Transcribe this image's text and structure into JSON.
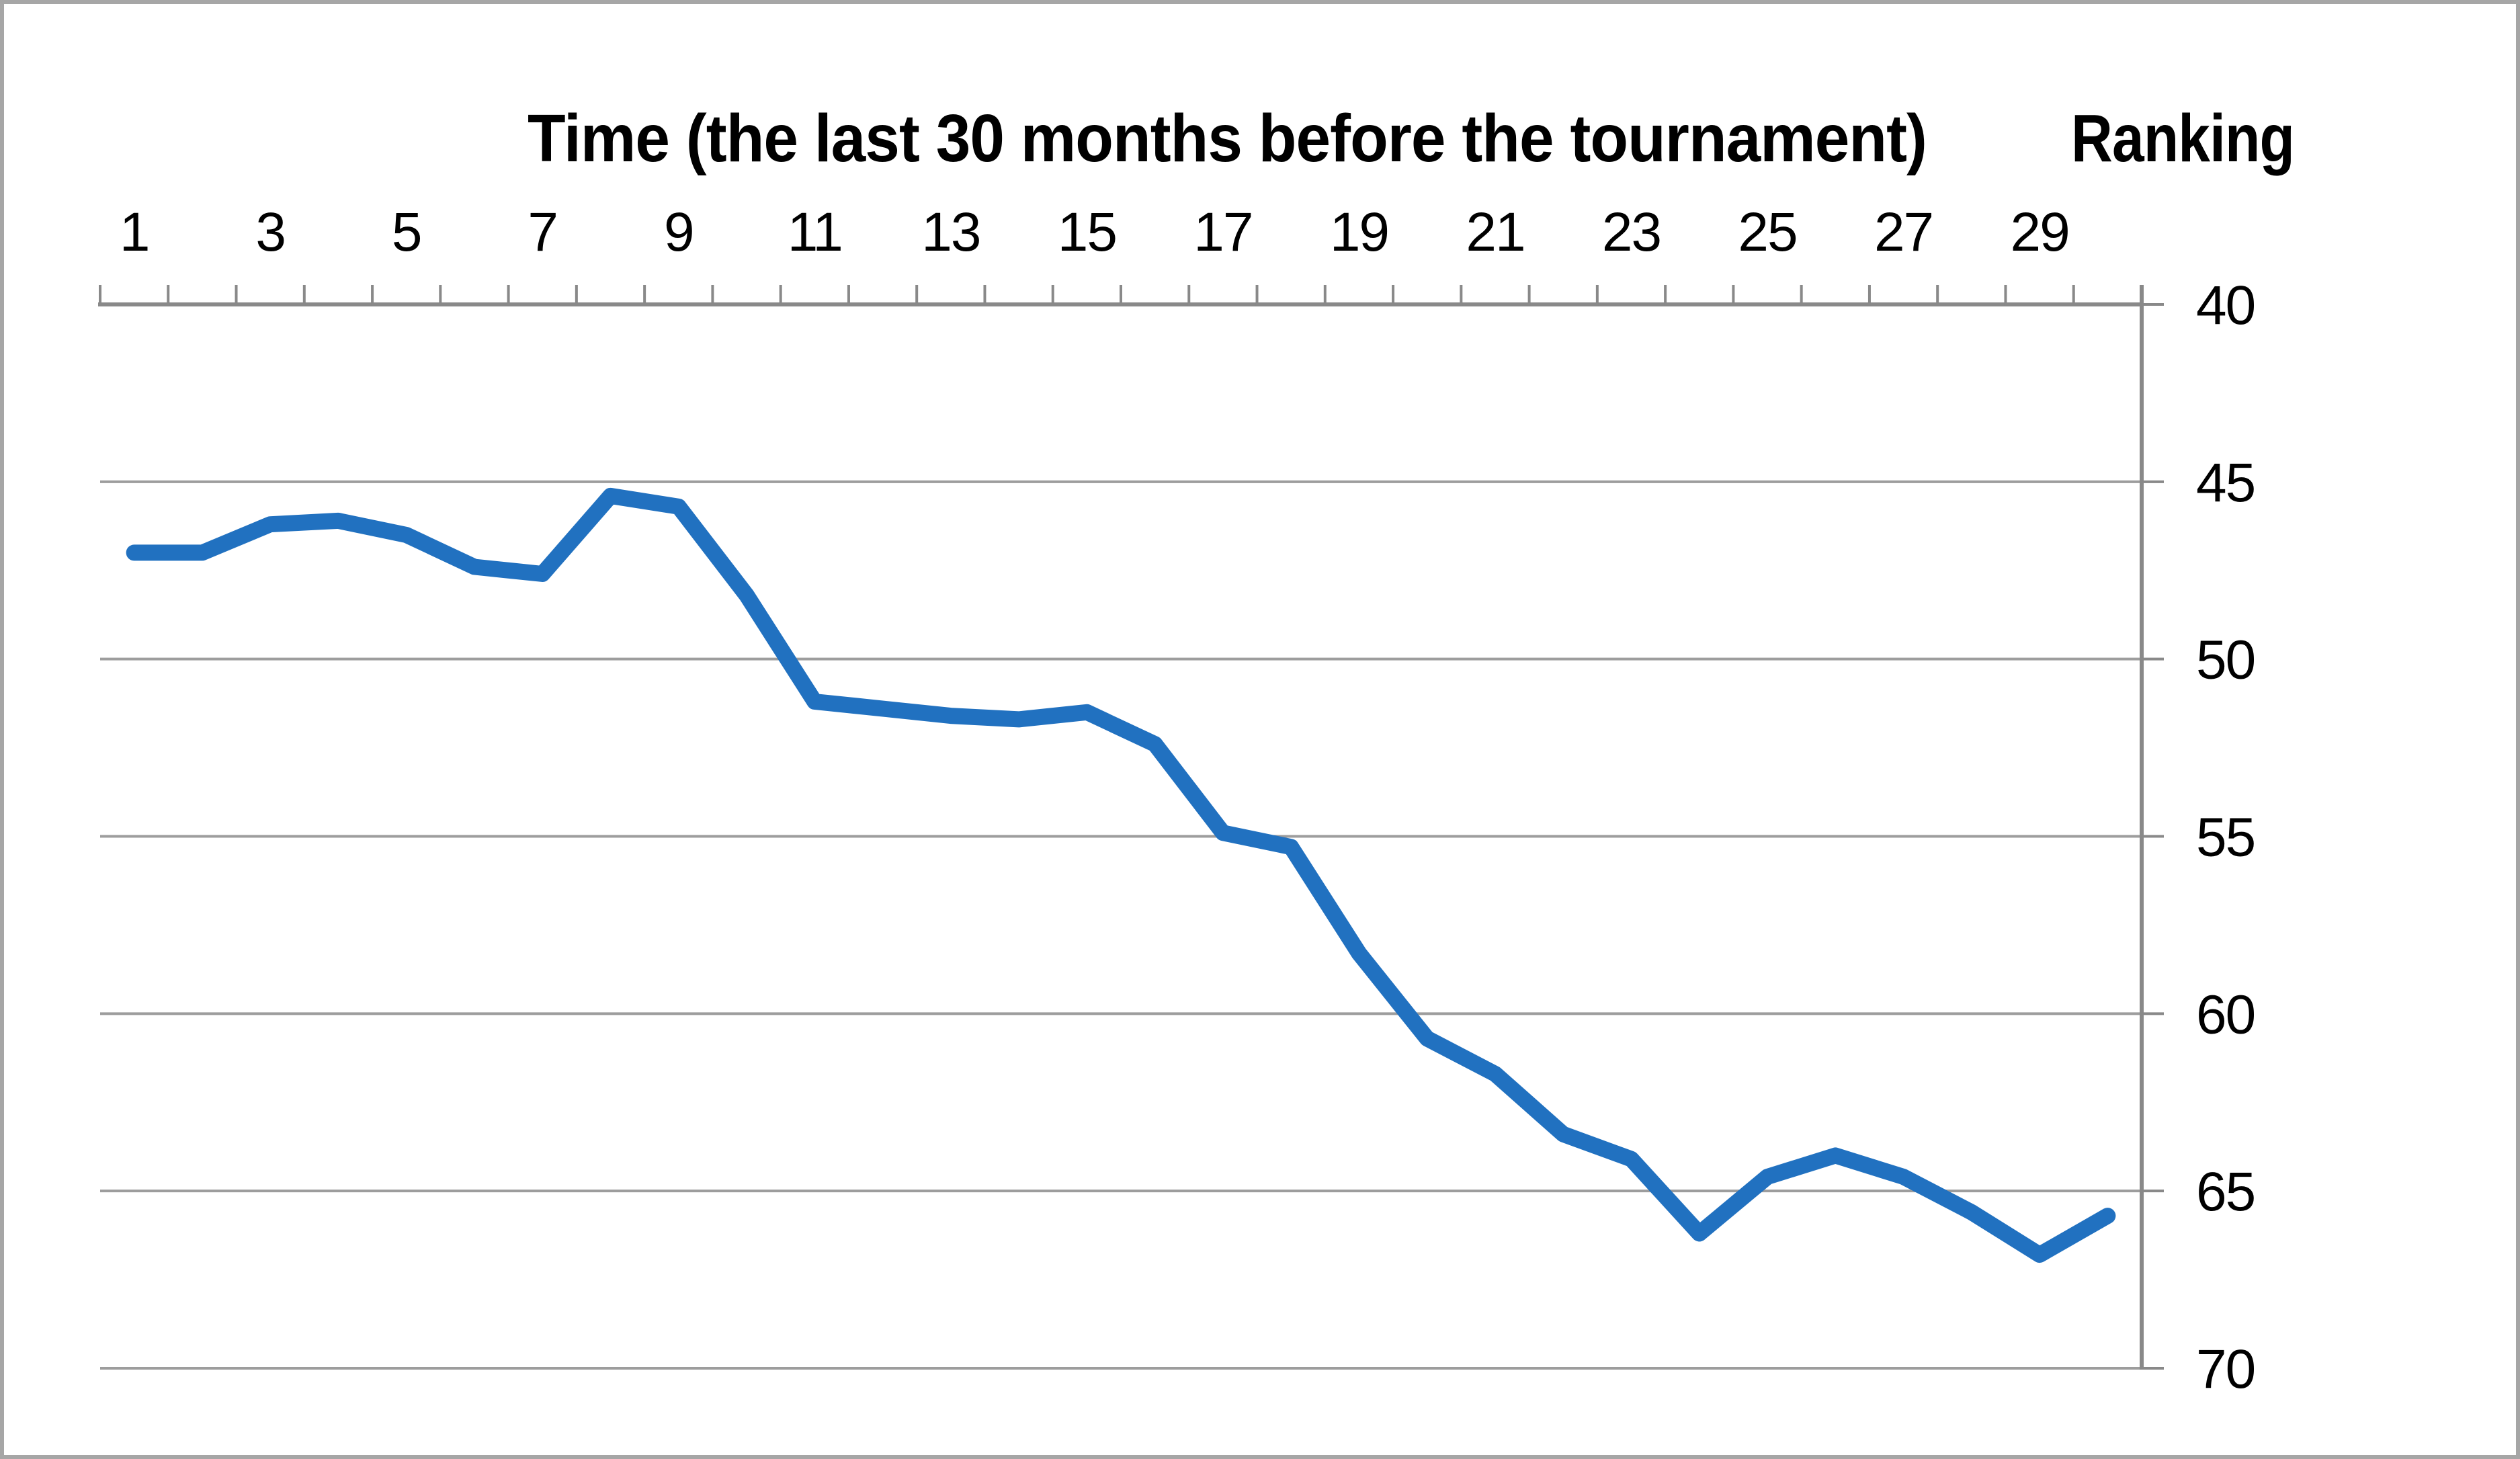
{
  "figure": {
    "title": "Time (the last 30 months before the tournament)",
    "right_axis_title": "Ranking"
  },
  "chart_data": {
    "type": "line",
    "title": "Time (the last 30 months before the tournament)",
    "ylabel": "Ranking",
    "x": [
      1,
      2,
      3,
      4,
      5,
      6,
      7,
      8,
      9,
      10,
      11,
      12,
      13,
      14,
      15,
      16,
      17,
      18,
      19,
      20,
      21,
      22,
      23,
      24,
      25,
      26,
      27,
      28,
      29,
      30
    ],
    "x_tick_labels": [
      "1",
      "3",
      "5",
      "7",
      "9",
      "11",
      "13",
      "15",
      "17",
      "19",
      "21",
      "23",
      "25",
      "27",
      "29"
    ],
    "values": [
      47.0,
      47.0,
      46.2,
      46.1,
      46.5,
      47.4,
      47.6,
      45.4,
      45.7,
      48.2,
      51.2,
      51.4,
      51.6,
      51.7,
      51.5,
      52.4,
      54.9,
      55.3,
      58.3,
      60.7,
      61.7,
      63.4,
      64.1,
      66.2,
      64.6,
      64.0,
      64.6,
      65.6,
      66.8,
      65.7
    ],
    "series": [
      {
        "name": "Ranking",
        "values": [
          47.0,
          47.0,
          46.2,
          46.1,
          46.5,
          47.4,
          47.6,
          45.4,
          45.7,
          48.2,
          51.2,
          51.4,
          51.6,
          51.7,
          51.5,
          52.4,
          54.9,
          55.3,
          58.3,
          60.7,
          61.7,
          63.4,
          64.1,
          66.2,
          64.6,
          64.0,
          64.6,
          65.6,
          66.8,
          65.7
        ]
      }
    ],
    "y_ticks": [
      40,
      45,
      50,
      55,
      60,
      65,
      70
    ],
    "ylim": [
      40,
      70
    ],
    "y_axis_reversed": true,
    "x_slots": 30,
    "grid": "horizontal",
    "legend_position": "none",
    "line_color": "#2171c0",
    "grid_color": "#9d9d9d",
    "axis_color": "#898989",
    "border_color": "#a6a6a6",
    "text_color": "#000000"
  }
}
